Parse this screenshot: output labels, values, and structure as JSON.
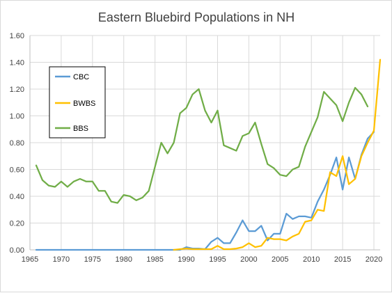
{
  "chart_data": {
    "type": "line",
    "title": "Eastern Bluebird Populations in NH",
    "xlim": [
      1965,
      2021
    ],
    "ylim": [
      0,
      1.6
    ],
    "x_ticks": [
      "1965",
      "1970",
      "1975",
      "1980",
      "1985",
      "1990",
      "1995",
      "2000",
      "2005",
      "2010",
      "2015",
      "2020"
    ],
    "y_ticks": [
      "0.00",
      "0.20",
      "0.40",
      "0.60",
      "0.80",
      "1.00",
      "1.20",
      "1.40",
      "1.60"
    ],
    "grid": "horizontal and vertical",
    "legend_position": "left, inside plot",
    "series": [
      {
        "name": "CBC",
        "color": "#5b9bd5",
        "x": [
          1966,
          1967,
          1968,
          1969,
          1970,
          1971,
          1972,
          1973,
          1974,
          1975,
          1976,
          1977,
          1978,
          1979,
          1980,
          1981,
          1982,
          1983,
          1984,
          1985,
          1986,
          1987,
          1988,
          1989,
          1990,
          1991,
          1992,
          1993,
          1994,
          1995,
          1996,
          1997,
          1998,
          1999,
          2000,
          2001,
          2002,
          2003,
          2004,
          2005,
          2006,
          2007,
          2008,
          2009,
          2010,
          2011,
          2012,
          2013,
          2014,
          2015,
          2016,
          2017,
          2018,
          2019,
          2020
        ],
        "values": [
          0,
          0,
          0,
          0,
          0,
          0,
          0,
          0,
          0,
          0,
          0,
          0,
          0,
          0,
          0,
          0,
          0,
          0,
          0,
          0,
          0,
          0,
          0,
          0,
          0.02,
          0.01,
          0.01,
          0.005,
          0.06,
          0.09,
          0.05,
          0.05,
          0.13,
          0.22,
          0.14,
          0.14,
          0.18,
          0.07,
          0.12,
          0.12,
          0.27,
          0.23,
          0.25,
          0.25,
          0.24,
          0.36,
          0.45,
          0.56,
          0.69,
          0.45,
          0.69,
          0.53,
          0.71,
          0.83,
          0.88
        ]
      },
      {
        "name": "BWBS",
        "color": "#ffc000",
        "x": [
          1988,
          1989,
          1990,
          1991,
          1992,
          1993,
          1994,
          1995,
          1996,
          1997,
          1998,
          1999,
          2000,
          2001,
          2002,
          2003,
          2004,
          2005,
          2006,
          2007,
          2008,
          2009,
          2010,
          2011,
          2012,
          2013,
          2014,
          2015,
          2016,
          2017,
          2018,
          2019,
          2020,
          2021
        ],
        "values": [
          0,
          0.005,
          0.01,
          0.005,
          0.005,
          0.005,
          0.005,
          0.03,
          0.005,
          0.005,
          0.01,
          0.02,
          0.05,
          0.02,
          0.03,
          0.09,
          0.08,
          0.08,
          0.07,
          0.1,
          0.12,
          0.21,
          0.22,
          0.3,
          0.29,
          0.58,
          0.55,
          0.7,
          0.49,
          0.53,
          0.7,
          0.8,
          0.89,
          1.42
        ]
      },
      {
        "name": "BBS",
        "color": "#70ad47",
        "x": [
          1966,
          1967,
          1968,
          1969,
          1970,
          1971,
          1972,
          1973,
          1974,
          1975,
          1976,
          1977,
          1978,
          1979,
          1980,
          1981,
          1982,
          1983,
          1984,
          1985,
          1986,
          1987,
          1988,
          1989,
          1990,
          1991,
          1992,
          1993,
          1994,
          1995,
          1996,
          1997,
          1998,
          1999,
          2000,
          2001,
          2002,
          2003,
          2004,
          2005,
          2006,
          2007,
          2008,
          2009,
          2010,
          2011,
          2012,
          2013,
          2014,
          2015,
          2016,
          2017,
          2018,
          2019
        ],
        "values": [
          0.63,
          0.52,
          0.48,
          0.47,
          0.51,
          0.47,
          0.51,
          0.53,
          0.51,
          0.51,
          0.44,
          0.44,
          0.36,
          0.35,
          0.41,
          0.4,
          0.37,
          0.39,
          0.44,
          0.62,
          0.8,
          0.72,
          0.8,
          1.02,
          1.06,
          1.16,
          1.2,
          1.04,
          0.95,
          1.04,
          0.78,
          0.76,
          0.74,
          0.85,
          0.87,
          0.95,
          0.79,
          0.64,
          0.61,
          0.56,
          0.55,
          0.6,
          0.62,
          0.77,
          0.88,
          0.99,
          1.18,
          1.13,
          1.08,
          0.96,
          1.1,
          1.21,
          1.16,
          1.07
        ]
      }
    ]
  }
}
